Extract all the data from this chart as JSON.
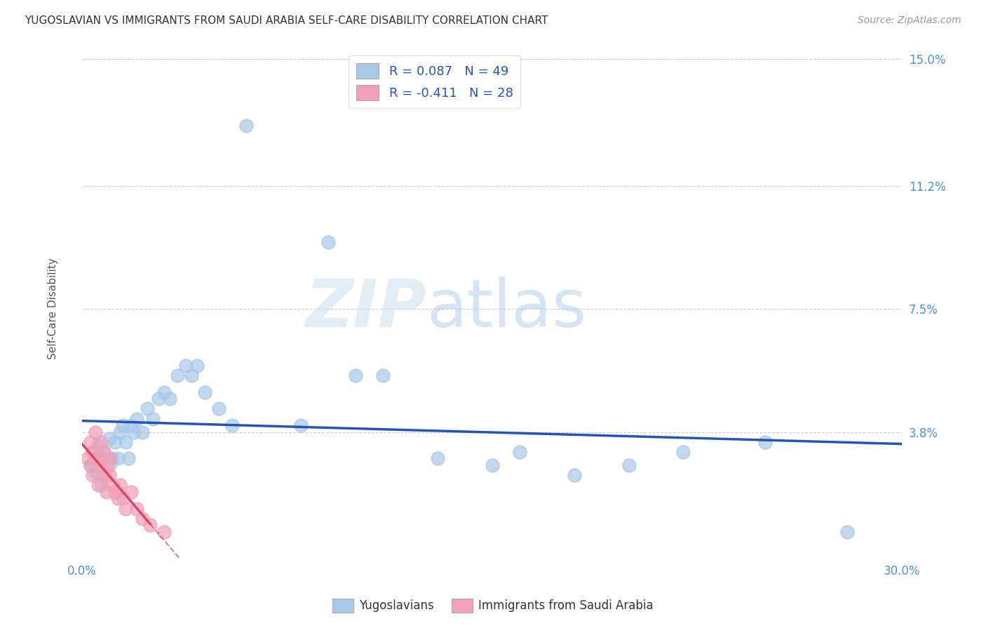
{
  "title": "YUGOSLAVIAN VS IMMIGRANTS FROM SAUDI ARABIA SELF-CARE DISABILITY CORRELATION CHART",
  "source": "Source: ZipAtlas.com",
  "ylabel": "Self-Care Disability",
  "xlim": [
    0.0,
    0.3
  ],
  "ylim": [
    0.0,
    0.15
  ],
  "yticks": [
    0.0,
    0.038,
    0.075,
    0.112,
    0.15
  ],
  "ytick_labels": [
    "",
    "3.8%",
    "7.5%",
    "11.2%",
    "15.0%"
  ],
  "xticks": [
    0.0,
    0.05,
    0.1,
    0.15,
    0.2,
    0.25,
    0.3
  ],
  "xtick_labels": [
    "0.0%",
    "",
    "",
    "",
    "",
    "",
    "30.0%"
  ],
  "watermark_zip": "ZIP",
  "watermark_atlas": "atlas",
  "blue_R": 0.087,
  "blue_N": 49,
  "pink_R": -0.411,
  "pink_N": 28,
  "blue_color": "#a8c8e8",
  "pink_color": "#f0a0b8",
  "blue_line_color": "#2255bb",
  "pink_line_color": "#dd4466",
  "grid_color": "#cccccc",
  "title_color": "#333333",
  "axis_label_color": "#4a90d9",
  "blue_scatter_x": [
    0.003,
    0.004,
    0.005,
    0.005,
    0.006,
    0.006,
    0.007,
    0.007,
    0.008,
    0.008,
    0.009,
    0.01,
    0.01,
    0.011,
    0.012,
    0.013,
    0.014,
    0.015,
    0.016,
    0.017,
    0.018,
    0.019,
    0.02,
    0.022,
    0.024,
    0.026,
    0.028,
    0.03,
    0.032,
    0.035,
    0.038,
    0.04,
    0.042,
    0.045,
    0.05,
    0.055,
    0.06,
    0.08,
    0.09,
    0.1,
    0.11,
    0.13,
    0.15,
    0.16,
    0.18,
    0.2,
    0.22,
    0.25,
    0.28
  ],
  "blue_scatter_y": [
    0.028,
    0.032,
    0.026,
    0.03,
    0.028,
    0.034,
    0.022,
    0.03,
    0.025,
    0.032,
    0.03,
    0.036,
    0.028,
    0.03,
    0.035,
    0.03,
    0.038,
    0.04,
    0.035,
    0.03,
    0.04,
    0.038,
    0.042,
    0.038,
    0.045,
    0.042,
    0.048,
    0.05,
    0.048,
    0.055,
    0.058,
    0.055,
    0.058,
    0.05,
    0.045,
    0.04,
    0.13,
    0.04,
    0.095,
    0.055,
    0.055,
    0.03,
    0.028,
    0.032,
    0.025,
    0.028,
    0.032,
    0.035,
    0.008
  ],
  "pink_scatter_x": [
    0.002,
    0.003,
    0.003,
    0.004,
    0.004,
    0.005,
    0.005,
    0.006,
    0.006,
    0.007,
    0.007,
    0.008,
    0.008,
    0.009,
    0.009,
    0.01,
    0.01,
    0.011,
    0.012,
    0.013,
    0.014,
    0.015,
    0.016,
    0.018,
    0.02,
    0.022,
    0.025,
    0.03
  ],
  "pink_scatter_y": [
    0.03,
    0.028,
    0.035,
    0.025,
    0.032,
    0.03,
    0.038,
    0.022,
    0.03,
    0.028,
    0.035,
    0.025,
    0.032,
    0.02,
    0.028,
    0.025,
    0.03,
    0.022,
    0.02,
    0.018,
    0.022,
    0.018,
    0.015,
    0.02,
    0.015,
    0.012,
    0.01,
    0.008
  ]
}
